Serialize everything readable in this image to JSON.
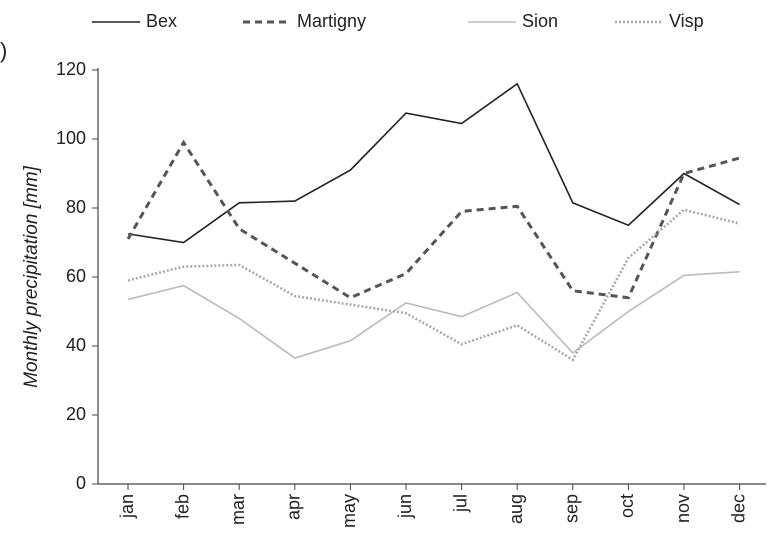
{
  "chart_data": {
    "type": "line",
    "panel_label": ")",
    "y_label": "Monthly precipitation [mm]",
    "categories": [
      "jan",
      "feb",
      "mar",
      "apr",
      "may",
      "jun",
      "jul",
      "aug",
      "sep",
      "oct",
      "nov",
      "dec"
    ],
    "series": [
      {
        "name": "Bex",
        "color": "#222222",
        "dash": "solid",
        "values": [
          72.5,
          70,
          81.5,
          82,
          91,
          107.5,
          104.5,
          116,
          81.5,
          75,
          90,
          81
        ]
      },
      {
        "name": "Martigny",
        "color": "#555555",
        "dash": "dashed",
        "values": [
          71,
          99,
          74,
          64,
          54,
          61,
          79,
          80.5,
          56,
          54,
          90,
          94.5
        ]
      },
      {
        "name": "Sion",
        "color": "#bbbbbb",
        "dash": "solid",
        "values": [
          53.5,
          57.5,
          48,
          36.5,
          41.5,
          52.5,
          48.5,
          55.5,
          38,
          50,
          60.5,
          61.5
        ]
      },
      {
        "name": "Visp",
        "color": "#aaaaaa",
        "dash": "dotted",
        "values": [
          59,
          63,
          63.5,
          54.5,
          52,
          49.5,
          40.5,
          46,
          36,
          65.5,
          79.5,
          75.5
        ]
      }
    ],
    "ylim": [
      0,
      120
    ],
    "yticks": [
      0,
      20,
      40,
      60,
      80,
      100,
      120
    ],
    "legend": "top"
  }
}
